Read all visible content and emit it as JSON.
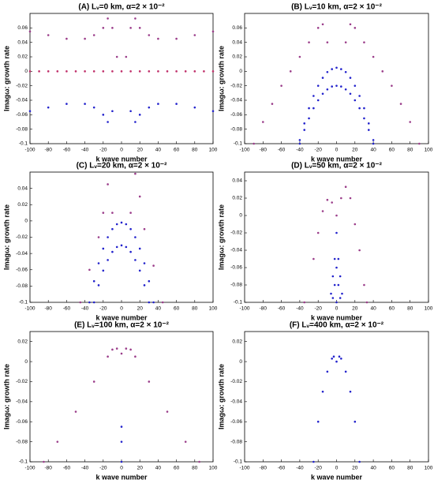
{
  "chart_data": [
    {
      "type": "scatter",
      "title": "(A) Lᵥ=0 km,  α=2 × 10⁻²",
      "xlabel": "k wave number",
      "ylabel": "Imagω: growth rate",
      "xlim": [
        -100,
        100
      ],
      "xticks": [
        -100,
        -80,
        -60,
        -40,
        -20,
        0,
        20,
        40,
        60,
        80,
        100
      ],
      "ylim": [
        -0.1,
        0.08
      ],
      "yticks": [
        -0.1,
        -0.08,
        -0.06,
        -0.04,
        -0.02,
        0,
        0.02,
        0.04,
        0.06
      ],
      "series": [
        {
          "color": "#9b3d8a",
          "x": [
            -100,
            -80,
            -60,
            -40,
            -30,
            -20,
            -15,
            -10,
            -5,
            5,
            10,
            15,
            20,
            30,
            40,
            60,
            80,
            100
          ],
          "values": [
            0.055,
            0.05,
            0.045,
            0.045,
            0.05,
            0.06,
            0.073,
            0.06,
            0.02,
            0.02,
            0.06,
            0.073,
            0.06,
            0.05,
            0.045,
            0.045,
            0.05,
            0.055
          ]
        },
        {
          "color": "#c0306a",
          "x": [
            -100,
            -90,
            -80,
            -70,
            -60,
            -50,
            -40,
            -30,
            -20,
            -10,
            0,
            10,
            20,
            30,
            40,
            50,
            60,
            70,
            80,
            90,
            100
          ],
          "values": [
            0,
            0,
            0,
            0,
            0,
            0,
            0,
            0,
            0,
            0,
            0,
            0,
            0,
            0,
            0,
            0,
            0,
            0,
            0,
            0,
            0
          ]
        },
        {
          "color": "#2222cc",
          "x": [
            -100,
            -80,
            -60,
            -40,
            -30,
            -20,
            -15,
            -10,
            10,
            15,
            20,
            30,
            40,
            60,
            80,
            100
          ],
          "values": [
            -0.055,
            -0.05,
            -0.045,
            -0.045,
            -0.05,
            -0.06,
            -0.07,
            -0.055,
            -0.055,
            -0.07,
            -0.06,
            -0.05,
            -0.045,
            -0.045,
            -0.05,
            -0.055
          ]
        }
      ]
    },
    {
      "type": "scatter",
      "title": "(B) Lᵥ=10 km,  α=2 × 10⁻²",
      "xlabel": "k wave number",
      "ylabel": "Imagω: growth rate",
      "xlim": [
        -100,
        100
      ],
      "xticks": [
        -100,
        -80,
        -60,
        -40,
        -20,
        0,
        20,
        40,
        60,
        80,
        100
      ],
      "ylim": [
        -0.1,
        0.08
      ],
      "yticks": [
        -0.1,
        -0.08,
        -0.06,
        -0.04,
        -0.02,
        0,
        0.02,
        0.04,
        0.06
      ],
      "series": [
        {
          "color": "#9b3d8a",
          "x": [
            -90,
            -80,
            -70,
            -60,
            -50,
            -40,
            -30,
            -20,
            -15,
            -10,
            10,
            15,
            20,
            30,
            40,
            50,
            60,
            70,
            80,
            90
          ],
          "values": [
            -0.1,
            -0.07,
            -0.045,
            -0.02,
            0,
            0.02,
            0.04,
            0.06,
            0.065,
            0.04,
            0.04,
            0.065,
            0.06,
            0.04,
            0.02,
            0,
            -0.02,
            -0.045,
            -0.07,
            -0.1
          ]
        },
        {
          "color": "#2222cc",
          "x": [
            -40,
            -35,
            -30,
            -25,
            -20,
            -15,
            -10,
            -5,
            0,
            5,
            10,
            15,
            20,
            25,
            30,
            35,
            40
          ],
          "values": [
            -0.095,
            -0.072,
            -0.051,
            -0.034,
            -0.02,
            -0.009,
            -0.001,
            0.003,
            0.005,
            0.003,
            -0.001,
            -0.009,
            -0.02,
            -0.034,
            -0.051,
            -0.072,
            -0.095
          ]
        },
        {
          "color": "#2222cc",
          "x": [
            -40,
            -35,
            -30,
            -25,
            -20,
            -15,
            -10,
            -5,
            0,
            5,
            10,
            15,
            20,
            25,
            30,
            35,
            40
          ],
          "values": [
            -0.1,
            -0.081,
            -0.065,
            -0.051,
            -0.04,
            -0.031,
            -0.025,
            -0.021,
            -0.02,
            -0.021,
            -0.025,
            -0.031,
            -0.04,
            -0.051,
            -0.065,
            -0.081,
            -0.1
          ]
        }
      ]
    },
    {
      "type": "scatter",
      "title": "(C) Lᵥ=20 km,  α=2 × 10⁻²",
      "xlabel": "k wave number",
      "ylabel": "Imagω: growth rate",
      "xlim": [
        -100,
        100
      ],
      "xticks": [
        -100,
        -80,
        -60,
        -40,
        -20,
        0,
        20,
        40,
        60,
        80,
        100
      ],
      "ylim": [
        -0.1,
        0.06
      ],
      "yticks": [
        -0.1,
        -0.08,
        -0.06,
        -0.04,
        -0.02,
        0,
        0.02,
        0.04
      ],
      "series": [
        {
          "color": "#9b3d8a",
          "x": [
            -45,
            -35,
            -25,
            -20,
            -15,
            -10,
            10,
            15,
            20,
            25,
            35,
            45
          ],
          "values": [
            -0.1,
            -0.06,
            -0.02,
            0.01,
            0.045,
            0.01,
            0.01,
            0.058,
            0.03,
            -0.01,
            -0.055,
            -0.1
          ]
        },
        {
          "color": "#2222cc",
          "x": [
            -35,
            -30,
            -25,
            -20,
            -15,
            -10,
            -5,
            0,
            5,
            10,
            15,
            20,
            25,
            30,
            35
          ],
          "values": [
            -0.1,
            -0.074,
            -0.052,
            -0.034,
            -0.02,
            -0.01,
            -0.004,
            -0.002,
            -0.004,
            -0.01,
            -0.02,
            -0.034,
            -0.052,
            -0.074,
            -0.1
          ]
        },
        {
          "color": "#2222cc",
          "x": [
            -30,
            -25,
            -20,
            -15,
            -10,
            -5,
            0,
            5,
            10,
            15,
            20,
            25,
            30
          ],
          "values": [
            -0.1,
            -0.079,
            -0.061,
            -0.048,
            -0.038,
            -0.032,
            -0.03,
            -0.032,
            -0.038,
            -0.048,
            -0.061,
            -0.079,
            -0.1
          ]
        }
      ]
    },
    {
      "type": "scatter",
      "title": "(D) Lᵥ=50 km,  α=2 × 10⁻²",
      "xlabel": "k wave number",
      "ylabel": "Imagω: growth rate",
      "xlim": [
        -100,
        100
      ],
      "xticks": [
        -100,
        -80,
        -60,
        -40,
        -20,
        0,
        20,
        40,
        60,
        80,
        100
      ],
      "ylim": [
        -0.1,
        0.05
      ],
      "yticks": [
        -0.1,
        -0.08,
        -0.06,
        -0.04,
        -0.02,
        0,
        0.02,
        0.04
      ],
      "series": [
        {
          "color": "#9b3d8a",
          "x": [
            -35,
            -25,
            -20,
            -15,
            -10,
            -5,
            0,
            5,
            10,
            15,
            20,
            25,
            30,
            33
          ],
          "values": [
            -0.1,
            -0.05,
            -0.02,
            0.005,
            0.018,
            0.015,
            0,
            0.02,
            0.033,
            0.02,
            -0.01,
            -0.04,
            -0.08,
            -0.1
          ]
        },
        {
          "color": "#2222cc",
          "x": [
            -6,
            -4,
            -2,
            0,
            2,
            4,
            6,
            -4,
            0,
            4,
            -2,
            2,
            0
          ],
          "values": [
            -0.09,
            -0.07,
            -0.05,
            -0.02,
            -0.05,
            -0.07,
            -0.09,
            -0.095,
            -0.06,
            -0.095,
            -0.08,
            -0.08,
            -0.1
          ]
        }
      ]
    },
    {
      "type": "scatter",
      "title": "(E) Lᵥ=100 km,  α=2 × 10⁻²",
      "xlabel": "k wave number",
      "ylabel": "Imagω: growth rate",
      "xlim": [
        -100,
        100
      ],
      "xticks": [
        -100,
        -80,
        -60,
        -40,
        -20,
        0,
        20,
        40,
        60,
        80,
        100
      ],
      "ylim": [
        -0.1,
        0.03
      ],
      "yticks": [
        -0.1,
        -0.08,
        -0.06,
        -0.04,
        -0.02,
        0,
        0.02
      ],
      "series": [
        {
          "color": "#9b3d8a",
          "x": [
            -85,
            -70,
            -50,
            -30,
            -15,
            -10,
            -5,
            0,
            5,
            10,
            15,
            30,
            50,
            70,
            85
          ],
          "values": [
            -0.1,
            -0.08,
            -0.05,
            -0.02,
            0.005,
            0.012,
            0.013,
            0.008,
            0.013,
            0.012,
            0.005,
            -0.02,
            -0.05,
            -0.08,
            -0.1
          ]
        },
        {
          "color": "#2222cc",
          "x": [
            0,
            0,
            0
          ],
          "values": [
            -0.065,
            -0.08,
            -0.1
          ]
        }
      ]
    },
    {
      "type": "scatter",
      "title": "(F) Lᵥ=400 km,  α=2 × 10⁻²",
      "xlabel": "k wave number",
      "ylabel": "Imagω: growth rate",
      "xlim": [
        -100,
        100
      ],
      "xticks": [
        -100,
        -80,
        -60,
        -40,
        -20,
        0,
        20,
        40,
        60,
        80,
        100
      ],
      "ylim": [
        -0.1,
        0.03
      ],
      "yticks": [
        -0.1,
        -0.08,
        -0.06,
        -0.04,
        -0.02,
        0,
        0.02
      ],
      "series": [
        {
          "color": "#2222cc",
          "x": [
            -25,
            -20,
            -15,
            -10,
            -5,
            -3,
            0,
            3,
            5,
            10,
            15,
            20,
            25
          ],
          "values": [
            -0.1,
            -0.06,
            -0.03,
            -0.01,
            0.003,
            0.005,
            0,
            0.005,
            0.003,
            -0.01,
            -0.03,
            -0.06,
            -0.1
          ]
        }
      ]
    }
  ]
}
